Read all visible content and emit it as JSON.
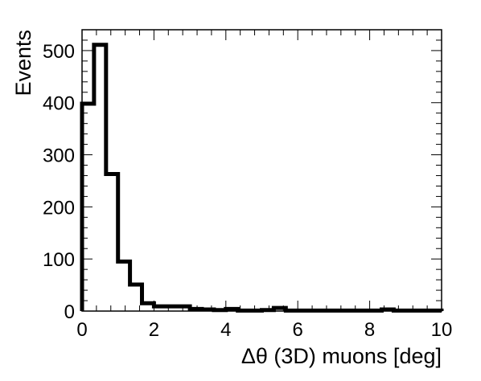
{
  "chart_data": {
    "type": "bar",
    "histogram": true,
    "xlabel": "Δθ (3D) muons [deg]",
    "ylabel": "Events",
    "xlim": [
      0,
      10
    ],
    "ylim": [
      0,
      540
    ],
    "x_ticks": [
      0,
      2,
      4,
      6,
      8,
      10
    ],
    "y_ticks": [
      0,
      100,
      200,
      300,
      400,
      500
    ],
    "x_tick_labels": [
      "0",
      "2",
      "4",
      "6",
      "8",
      "10"
    ],
    "y_tick_labels": [
      "0",
      "100",
      "200",
      "300",
      "400",
      "500"
    ],
    "grid": false,
    "bin_edges": [
      0,
      0.333,
      0.667,
      1.0,
      1.333,
      1.667,
      2.0,
      2.333,
      2.667,
      3.0,
      3.333,
      3.667,
      4.0,
      4.333,
      4.667,
      5.0,
      5.333,
      5.667,
      6.0,
      6.333,
      6.667,
      7.0,
      7.333,
      7.667,
      8.0,
      8.333,
      8.667,
      9.0,
      9.333,
      9.667,
      10.0
    ],
    "values": [
      398,
      511,
      263,
      95,
      51,
      15,
      9,
      9,
      9,
      4,
      3,
      2,
      4,
      1,
      1,
      2,
      6,
      1,
      1,
      1,
      1,
      1,
      1,
      1,
      1,
      3,
      1,
      1,
      1,
      1
    ]
  }
}
